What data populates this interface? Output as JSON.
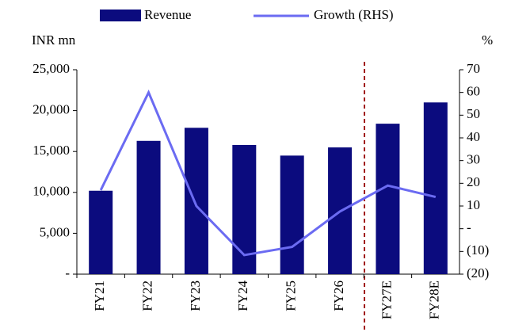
{
  "chart_data": {
    "type": "bar_line",
    "categories": [
      "FY21",
      "FY22",
      "FY23",
      "FY24",
      "FY25",
      "FY26",
      "FY27E",
      "FY28E"
    ],
    "series": [
      {
        "name": "Revenue",
        "type": "bar",
        "color": "#0b0b7e",
        "values": [
          10200,
          16300,
          17900,
          15800,
          14500,
          15500,
          18400,
          21000
        ]
      },
      {
        "name": "Growth  (RHS)",
        "type": "line",
        "axis": "y2",
        "color": "#6b6bf2",
        "values": [
          17,
          60,
          10,
          -11.6,
          -8,
          7.6,
          19,
          14
        ]
      }
    ],
    "y_label": "INR mn",
    "y2_label": "%",
    "ylim": [
      0,
      25000
    ],
    "yticks": [
      {
        "value": 0,
        "label": "-"
      },
      {
        "value": 5000,
        "label": "5,000"
      },
      {
        "value": 10000,
        "label": "10,000"
      },
      {
        "value": 15000,
        "label": "15,000"
      },
      {
        "value": 20000,
        "label": "20,000"
      },
      {
        "value": 25000,
        "label": "25,000"
      }
    ],
    "y2lim": [
      -20,
      70
    ],
    "y2ticks": [
      {
        "value": -20,
        "label": "(20)"
      },
      {
        "value": -10,
        "label": "(10)"
      },
      {
        "value": 0,
        "label": "-"
      },
      10,
      20,
      30,
      40,
      50,
      60,
      70
    ],
    "grid": false,
    "legend": "top"
  }
}
